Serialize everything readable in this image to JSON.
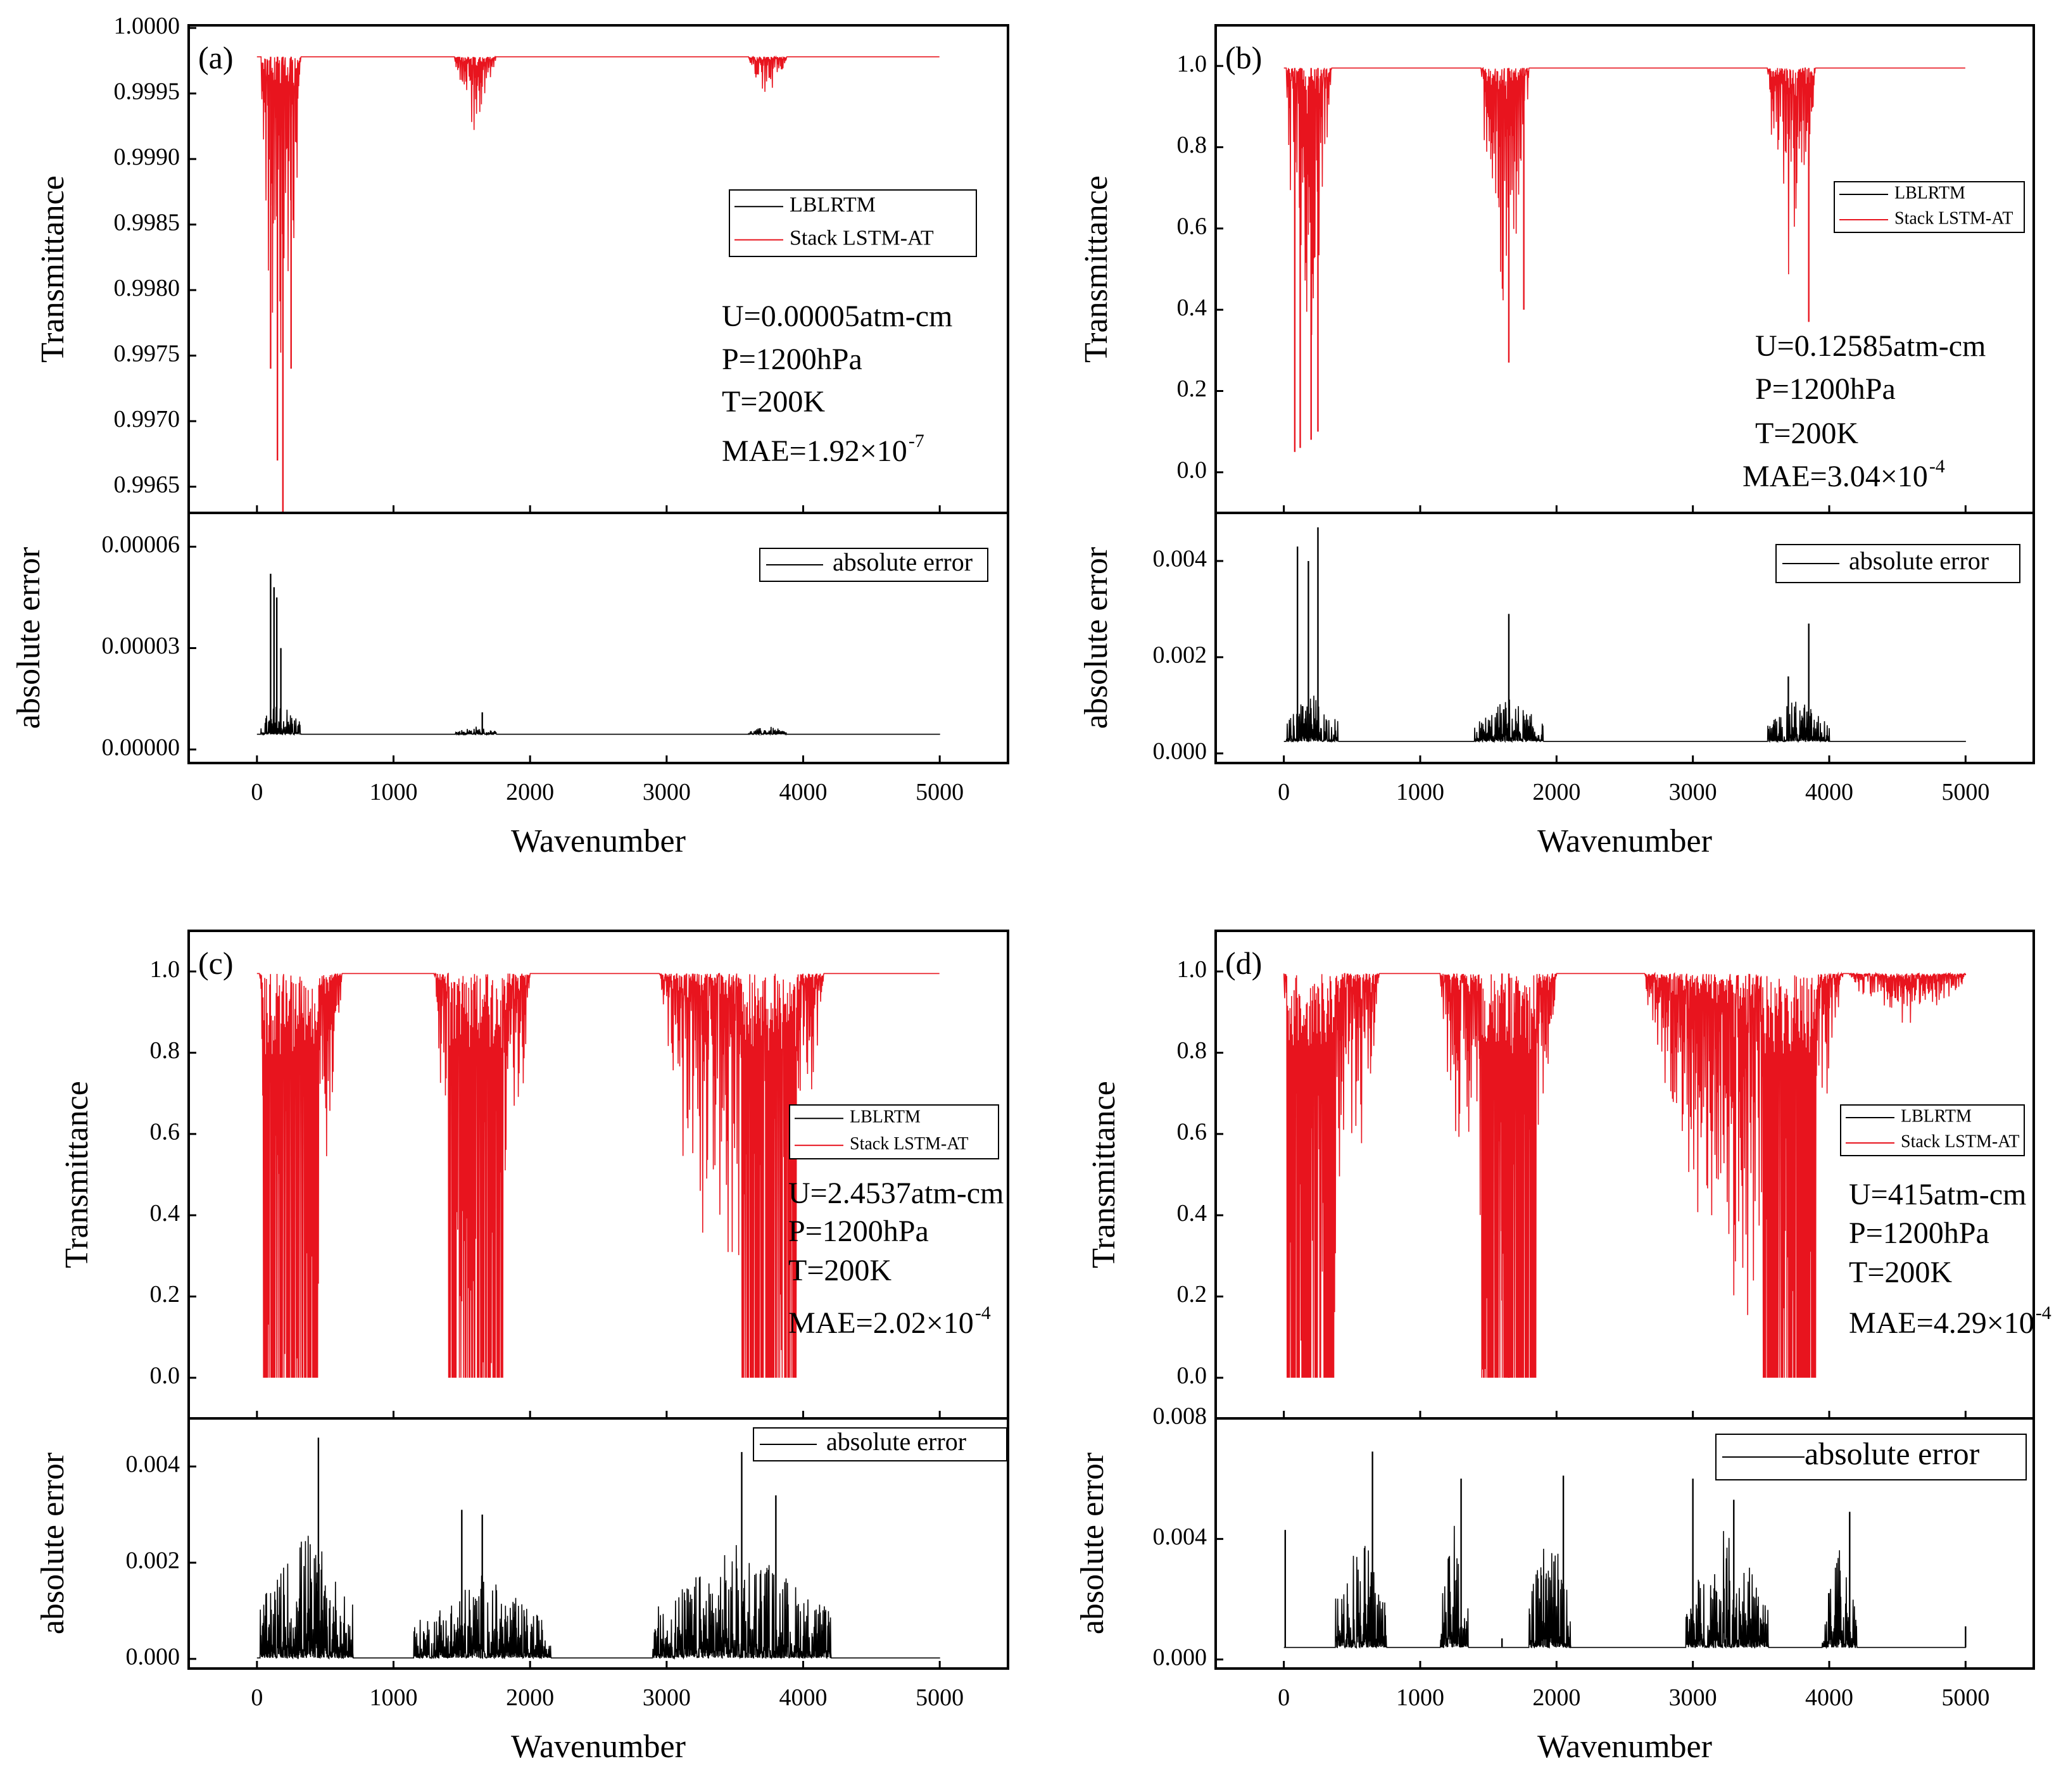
{
  "chart_data": [
    {
      "panel": "(a)",
      "type": "line",
      "xlabel": "Wavenumber",
      "xlim": [
        -500,
        5500
      ],
      "xticks": [
        "0",
        "1000",
        "2000",
        "3000",
        "4000",
        "5000"
      ],
      "top": {
        "ylabel": "Transmittance",
        "ylim": [
          0.9963,
          1.00002
        ],
        "yticks": [
          "1.0000",
          "0.9995",
          "0.9990",
          "0.9985",
          "0.9980",
          "0.9975",
          "0.9970",
          "0.9965"
        ],
        "legend": [
          "LBLRTM",
          "Stack LSTM-AT"
        ],
        "annotations": [
          "U=0.00005atm-cm",
          "P=1200hPa",
          "T=200K",
          "MAE=1.92×10",
          "-7"
        ],
        "baseline": 0.99978,
        "bands": [
          {
            "from": 30,
            "to": 320,
            "min": 0.9963
          },
          {
            "from": 1450,
            "to": 1750,
            "min": 0.99915
          },
          {
            "from": 3600,
            "to": 3880,
            "min": 0.99935
          }
        ],
        "spikes": [
          [
            100,
            0.9974
          ],
          [
            150,
            0.9967
          ],
          [
            190,
            0.9963
          ],
          [
            250,
            0.9974
          ]
        ]
      },
      "bottom": {
        "ylabel": "absolute error",
        "ylim": [
          -4e-06,
          7e-05
        ],
        "yticks": [
          "0.00006",
          "0.00003",
          "0.00000"
        ],
        "legend": [
          "absolute error"
        ],
        "baseline": 4.5e-06,
        "bands": [
          {
            "from": 30,
            "to": 320,
            "max": 1.5e-05
          },
          {
            "from": 1450,
            "to": 1750,
            "max": 7e-06
          },
          {
            "from": 3600,
            "to": 3880,
            "max": 7e-06
          }
        ],
        "spikes": [
          [
            100,
            5.2e-05
          ],
          [
            125,
            4.8e-05
          ],
          [
            145,
            4.5e-05
          ],
          [
            175,
            3e-05
          ],
          [
            1650,
            1.1e-05
          ]
        ]
      }
    },
    {
      "panel": "(b)",
      "type": "line",
      "xlabel": "Wavenumber",
      "xlim": [
        -500,
        5500
      ],
      "xticks": [
        "0",
        "1000",
        "2000",
        "3000",
        "4000",
        "5000"
      ],
      "top": {
        "ylabel": "Transmittance",
        "ylim": [
          -0.1,
          1.1
        ],
        "yticks": [
          "1.0",
          "0.8",
          "0.6",
          "0.4",
          "0.2",
          "0.0"
        ],
        "legend": [
          "LBLRTM",
          "Stack LSTM-AT"
        ],
        "annotations": [
          "U=0.12585atm-cm",
          "P=1200hPa",
          "T=200K",
          "MAE=3.04×10",
          "-4"
        ],
        "baseline": 0.995,
        "bands": [
          {
            "from": 20,
            "to": 350,
            "min": 0.05
          },
          {
            "from": 1450,
            "to": 1800,
            "min": 0.27
          },
          {
            "from": 3550,
            "to": 3900,
            "min": 0.37
          }
        ],
        "spikes": [
          [
            80,
            0.05
          ],
          [
            120,
            0.06
          ],
          [
            200,
            0.08
          ],
          [
            250,
            0.1
          ],
          [
            1650,
            0.27
          ],
          [
            1760,
            0.4
          ],
          [
            3850,
            0.37
          ]
        ]
      },
      "bottom": {
        "ylabel": "absolute error",
        "ylim": [
          -0.0002,
          0.005
        ],
        "yticks": [
          "0.004",
          "0.002",
          "0.000"
        ],
        "legend": [
          "absolute error"
        ],
        "baseline": 0.00025,
        "bands": [
          {
            "from": 20,
            "to": 400,
            "max": 0.0013
          },
          {
            "from": 1400,
            "to": 1900,
            "max": 0.0012
          },
          {
            "from": 3550,
            "to": 4000,
            "max": 0.0012
          }
        ],
        "spikes": [
          [
            100,
            0.0043
          ],
          [
            180,
            0.004
          ],
          [
            250,
            0.0047
          ],
          [
            1650,
            0.0029
          ],
          [
            3850,
            0.0027
          ],
          [
            3700,
            0.0016
          ]
        ]
      }
    },
    {
      "panel": "(c)",
      "type": "line",
      "xlabel": "Wavenumber",
      "xlim": [
        -500,
        5500
      ],
      "xticks": [
        "0",
        "1000",
        "2000",
        "3000",
        "4000",
        "5000"
      ],
      "top": {
        "ylabel": "Transmittance",
        "ylim": [
          -0.1,
          1.1
        ],
        "yticks": [
          "1.0",
          "0.8",
          "0.6",
          "0.4",
          "0.2",
          "0.0"
        ],
        "legend": [
          "LBLRTM",
          "Stack LSTM-AT"
        ],
        "annotations": [
          "U=2.4537atm-cm",
          "P=1200hPa",
          "T=200K",
          "MAE=2.02×10",
          "-4"
        ],
        "baseline": 0.995,
        "bands": [
          {
            "from": 20,
            "to": 620,
            "min": 0.0,
            "core": [
              40,
              450
            ]
          },
          {
            "from": 1300,
            "to": 2000,
            "min": 0.0,
            "core": [
              1400,
              1800
            ]
          },
          {
            "from": 2950,
            "to": 4150,
            "min": 0.0,
            "core": [
              3550,
              3950
            ]
          }
        ],
        "spikes": []
      },
      "bottom": {
        "ylabel": "absolute error",
        "ylim": [
          -0.0002,
          0.005
        ],
        "yticks": [
          "0.004",
          "0.002",
          "0.000"
        ],
        "legend": [
          "absolute error"
        ],
        "baseline": 2e-05,
        "bands": [
          {
            "from": 20,
            "to": 700,
            "max": 0.0028
          },
          {
            "from": 1150,
            "to": 2150,
            "max": 0.0018
          },
          {
            "from": 2900,
            "to": 4200,
            "max": 0.0025
          }
        ],
        "spikes": [
          [
            450,
            0.0046
          ],
          [
            3550,
            0.0043
          ],
          [
            3800,
            0.0034
          ],
          [
            1500,
            0.0031
          ],
          [
            1650,
            0.003
          ]
        ]
      }
    },
    {
      "panel": "(d)",
      "type": "line",
      "xlabel": "Wavenumber",
      "xlim": [
        -500,
        5500
      ],
      "xticks": [
        "0",
        "1000",
        "2000",
        "3000",
        "4000",
        "5000"
      ],
      "top": {
        "ylabel": "Transmittance",
        "ylim": [
          -0.1,
          1.1
        ],
        "yticks": [
          "1.0",
          "0.8",
          "0.6",
          "0.4",
          "0.2",
          "0.0"
        ],
        "legend": [
          "LBLRTM",
          "Stack LSTM-AT"
        ],
        "annotations": [
          "U=415atm-cm",
          "P=1200hPa",
          "T=200K",
          "MAE=4.29×10",
          "-4"
        ],
        "baseline": 0.995,
        "bands": [
          {
            "from": 0,
            "to": 700,
            "min": 0.0,
            "core": [
              20,
              380
            ]
          },
          {
            "from": 1150,
            "to": 2000,
            "min": 0.0,
            "core": [
              1450,
              1850
            ]
          },
          {
            "from": 2650,
            "to": 4100,
            "min": 0.0,
            "core": [
              3500,
              3900
            ]
          },
          {
            "from": 4150,
            "to": 5000,
            "min": 0.85
          }
        ],
        "spikes": [
          [
            1600,
            0.19
          ],
          [
            1650,
            0.0
          ]
        ]
      },
      "bottom": {
        "ylabel": "absolute error",
        "ylim": [
          -0.0003,
          0.008
        ],
        "yticks": [
          "0.008",
          "0.004",
          "0.000"
        ],
        "legend": [
          "absolute error"
        ],
        "baseline": 0.0004,
        "bands": [
          {
            "from": 380,
            "to": 750,
            "max": 0.0045
          },
          {
            "from": 1150,
            "to": 1350,
            "max": 0.0045
          },
          {
            "from": 1800,
            "to": 2100,
            "max": 0.0045
          },
          {
            "from": 2950,
            "to": 3550,
            "max": 0.0045
          },
          {
            "from": 3950,
            "to": 4200,
            "max": 0.004
          }
        ],
        "spikes": [
          [
            10,
            0.0043
          ],
          [
            650,
            0.0069
          ],
          [
            1300,
            0.006
          ],
          [
            2050,
            0.0061
          ],
          [
            3000,
            0.006
          ],
          [
            3300,
            0.0053
          ],
          [
            4150,
            0.0049
          ],
          [
            1600,
            0.0007
          ],
          [
            5000,
            0.0011
          ]
        ]
      }
    }
  ]
}
